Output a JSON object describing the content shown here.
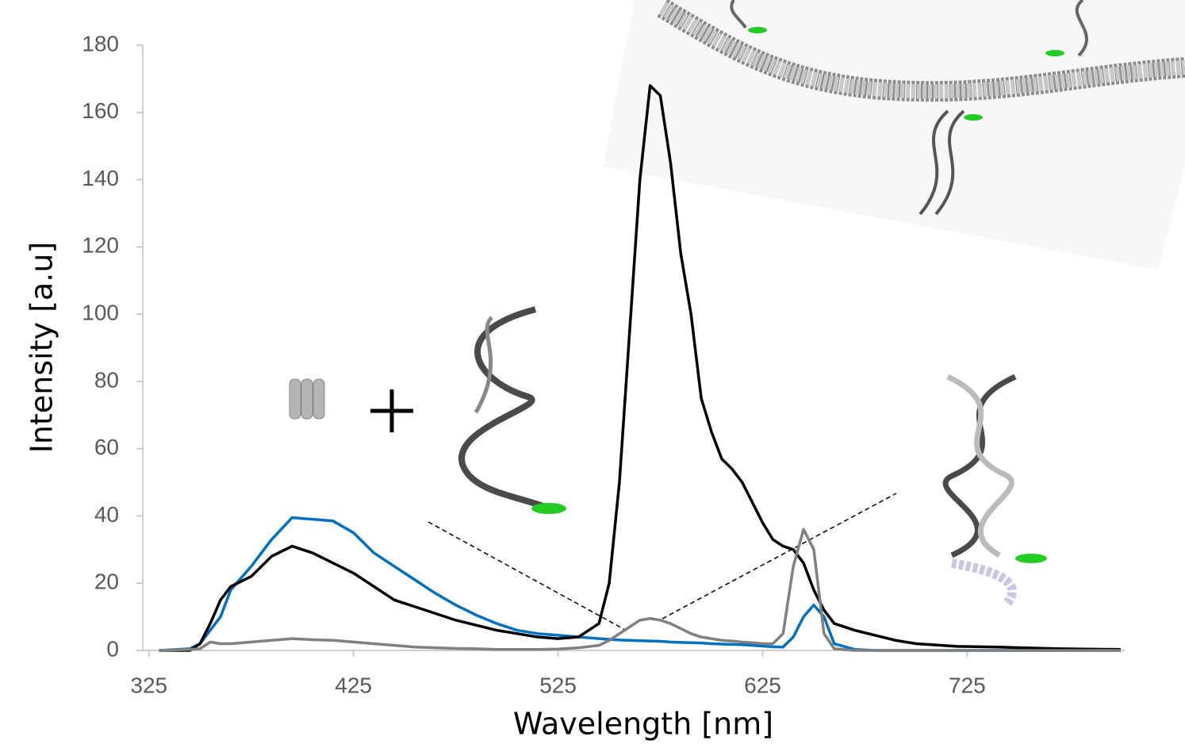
{
  "chart_data": {
    "type": "line",
    "x_label": "Wavelength [nm]",
    "y_label": "Intensity [a.u]",
    "x": [
      330,
      345,
      350,
      355,
      360,
      365,
      375,
      385,
      395,
      405,
      415,
      425,
      435,
      445,
      455,
      465,
      475,
      485,
      495,
      505,
      515,
      525,
      535,
      545,
      550,
      555,
      560,
      565,
      570,
      575,
      580,
      585,
      590,
      595,
      600,
      605,
      610,
      615,
      620,
      625,
      630,
      635,
      640,
      645,
      650,
      655,
      660,
      670,
      680,
      690,
      700,
      720,
      740,
      770,
      800
    ],
    "series": [
      {
        "color": "#0070c0",
        "values": [
          0,
          0.5,
          2,
          6,
          10,
          18,
          25,
          33,
          39.5,
          39,
          38.5,
          35,
          29,
          25,
          21,
          17,
          13.5,
          10.5,
          8,
          6,
          5,
          4.5,
          4,
          3.5,
          3.3,
          3.1,
          3,
          2.9,
          2.8,
          2.7,
          2.5,
          2.4,
          2.3,
          2.2,
          2,
          1.9,
          1.8,
          1.7,
          1.5,
          1.3,
          1.1,
          1,
          4,
          10,
          13.5,
          10,
          2,
          0.3,
          0,
          0,
          0,
          0,
          0,
          0,
          0
        ]
      },
      {
        "color": "#000000",
        "values": [
          0,
          0,
          2,
          8,
          15,
          19,
          22,
          28,
          31,
          29,
          26,
          23,
          19,
          15,
          13,
          11,
          9,
          7.5,
          6,
          5,
          4,
          3.5,
          4,
          8,
          20,
          50,
          95,
          140,
          168,
          165,
          145,
          118,
          100,
          75,
          65,
          57,
          54,
          50,
          44,
          38,
          33,
          31,
          30,
          26,
          18,
          12,
          8,
          6,
          4.5,
          3,
          2,
          1.2,
          1,
          0.5,
          0.3
        ]
      },
      {
        "color": "#808080",
        "values": [
          0,
          0.3,
          0.5,
          2.5,
          2,
          2,
          2.5,
          3,
          3.5,
          3.2,
          3,
          2.5,
          2,
          1.5,
          1,
          0.8,
          0.6,
          0.5,
          0.3,
          0.3,
          0.3,
          0.4,
          0.8,
          1.5,
          3,
          5,
          7,
          9,
          9.5,
          9,
          8,
          6.5,
          5,
          4,
          3.5,
          3,
          2.8,
          2.5,
          2.3,
          2,
          2,
          5,
          25,
          36,
          30,
          5,
          0.5,
          0,
          0,
          0,
          0,
          0,
          0,
          0,
          0
        ]
      }
    ],
    "xlim": [
      322,
      802
    ],
    "xticks": [
      325,
      425,
      525,
      625,
      725
    ],
    "ylim": [
      0,
      180
    ],
    "yticks": [
      0,
      20,
      40,
      60,
      80,
      100,
      120,
      140,
      160,
      180
    ]
  }
}
